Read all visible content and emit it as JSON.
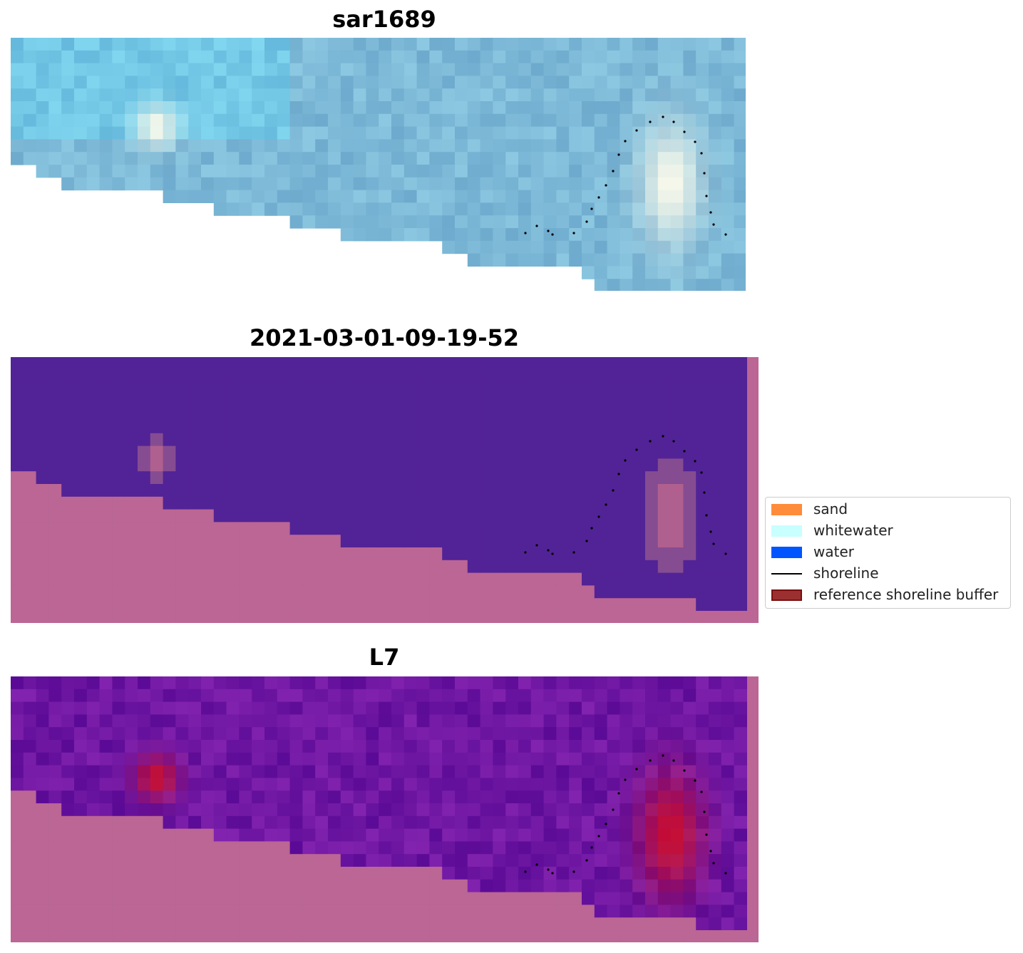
{
  "panels": [
    {
      "title": "sar1689",
      "kind": "rgb"
    },
    {
      "title": "2021-03-01-09-19-52",
      "kind": "classified"
    },
    {
      "title": "L7",
      "kind": "probability"
    }
  ],
  "legend": {
    "items": [
      {
        "label": "sand",
        "color": "#ff8c3a",
        "type": "patch"
      },
      {
        "label": "whitewater",
        "color": "#c8ffff",
        "type": "patch"
      },
      {
        "label": "water",
        "color": "#0055ff",
        "type": "patch"
      },
      {
        "label": "shoreline",
        "color": "#000000",
        "type": "line"
      },
      {
        "label": "reference shoreline buffer",
        "color": "#9c2f2f",
        "edge": "#7a1010",
        "type": "patch"
      }
    ]
  },
  "colors": {
    "classified_water": "#522396",
    "classified_land": "#bb6694",
    "nodata": "#bb6694"
  },
  "icons": {
    "shoreline_marker": "dotted-line"
  }
}
